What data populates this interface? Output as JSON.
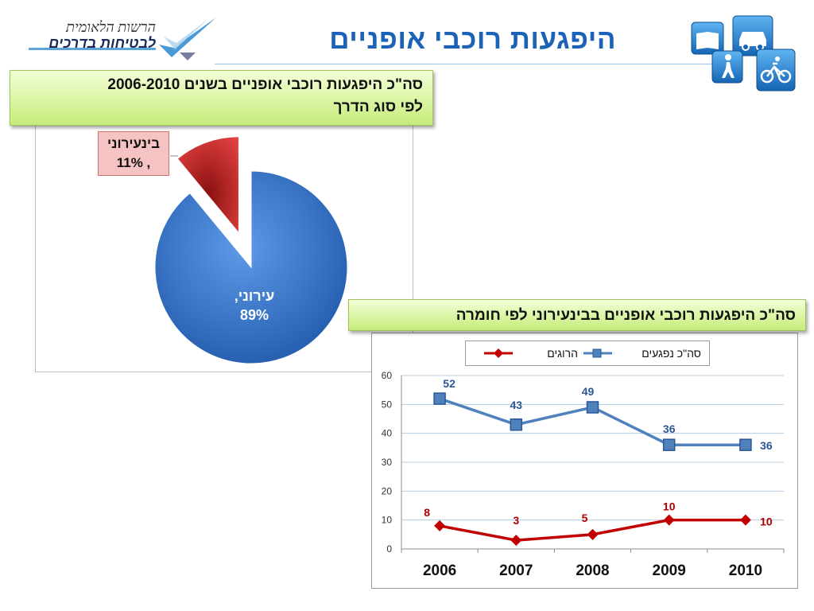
{
  "header": {
    "title": "היפגעות רוכבי אופניים",
    "logo_line1": "הרשות הלאומית",
    "logo_line2": "לבטיחות בדרכים",
    "icons": [
      "book-icon",
      "car-icon",
      "pedestrian-icon",
      "bicycle-icon"
    ]
  },
  "pie_panel": {
    "callout_line1": "סה\"כ היפגעות רוכבי אופניים בשנים 2006-2010",
    "callout_line2": "לפי סוג הדרך"
  },
  "line_panel": {
    "callout": "סה\"כ היפגעות רוכבי אופניים בבינעירוני לפי חומרה"
  },
  "colors": {
    "title_blue": "#1c63b7",
    "pie_blue": "#2f6fc4",
    "pie_red": "#c42a2a",
    "series_blue": "#4f81bd",
    "series_red": "#c00000",
    "callout_green": "#c6ec7a"
  },
  "chart_data": [
    {
      "type": "pie",
      "slices": [
        {
          "label": "בינעירוני",
          "value": 11,
          "value_label": ", 11%",
          "color": "#c42a2a",
          "exploded": true
        },
        {
          "label": "עירוני,",
          "value": 89,
          "value_label": "89%",
          "color": "#2f6fc4",
          "exploded": false
        }
      ]
    },
    {
      "type": "line",
      "categories": [
        "2006",
        "2007",
        "2008",
        "2009",
        "2010"
      ],
      "series": [
        {
          "name": "סה\"כ נפגעים",
          "values": [
            52,
            43,
            49,
            36,
            36
          ],
          "color": "#4f81bd",
          "marker": "square"
        },
        {
          "name": "הרוגים",
          "values": [
            8,
            3,
            5,
            10,
            10
          ],
          "color": "#c00000",
          "marker": "diamond"
        }
      ],
      "ylim": [
        0,
        60
      ],
      "yticks": [
        "0",
        "10",
        "20",
        "30",
        "40",
        "50",
        "60"
      ],
      "grid": true,
      "legend_position": "top"
    }
  ]
}
